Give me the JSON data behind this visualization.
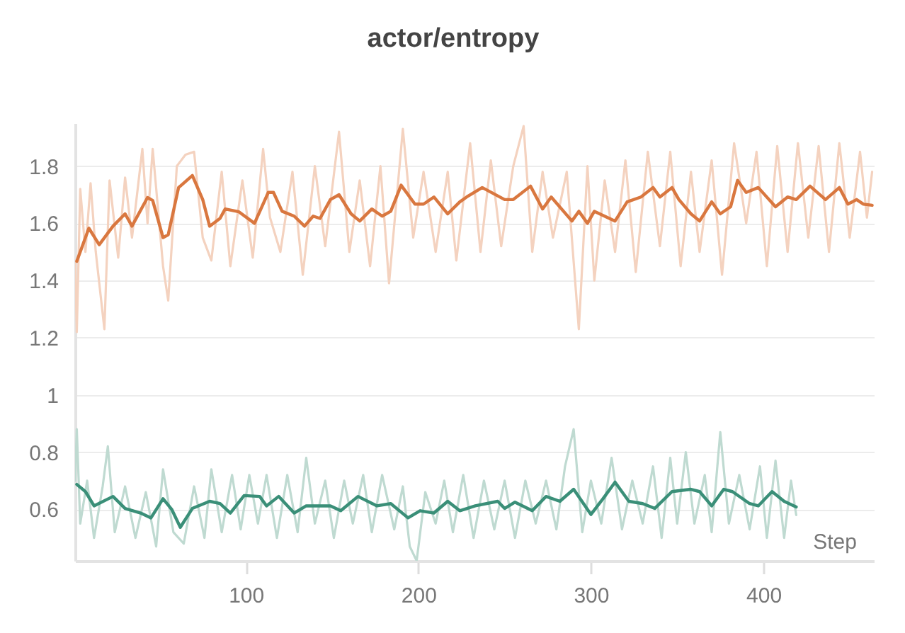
{
  "chart_data": {
    "type": "line",
    "title": "actor/entropy",
    "xlabel": "Step",
    "xlim": [
      1,
      464
    ],
    "xticks": [
      100,
      200,
      300,
      400
    ],
    "ylim": [
      0.42,
      1.95
    ],
    "yticks": [
      0.6,
      0.8,
      {
        "value": 1,
        "label": "1"
      },
      1.2,
      1.4,
      1.6,
      1.8
    ],
    "grid": "y",
    "series": [
      {
        "color": "#f4d2bf",
        "x": [
          1,
          2,
          4,
          7,
          10,
          13,
          18,
          21,
          26,
          30,
          34,
          40,
          43,
          46,
          52,
          55,
          60,
          65,
          70,
          75,
          80,
          86,
          91,
          98,
          104,
          110,
          114,
          120,
          127,
          133,
          140,
          146,
          154,
          160,
          166,
          172,
          178,
          183,
          191,
          197,
          203,
          210,
          217,
          222,
          230,
          236,
          242,
          248,
          255,
          261,
          266,
          272,
          278,
          286,
          293,
          298,
          302,
          308,
          314,
          320,
          326,
          333,
          340,
          346,
          352,
          358,
          363,
          370,
          376,
          383,
          390,
          396,
          402,
          408,
          414,
          420,
          426,
          432,
          438,
          444,
          450,
          456,
          460,
          463
        ],
        "values": [
          1.47,
          1.22,
          1.72,
          1.5,
          1.74,
          1.5,
          1.23,
          1.75,
          1.48,
          1.76,
          1.55,
          1.86,
          1.6,
          1.86,
          1.45,
          1.33,
          1.8,
          1.84,
          1.85,
          1.55,
          1.47,
          1.78,
          1.45,
          1.75,
          1.48,
          1.86,
          1.62,
          1.5,
          1.78,
          1.42,
          1.8,
          1.52,
          1.92,
          1.5,
          1.75,
          1.45,
          1.8,
          1.39,
          1.93,
          1.55,
          1.78,
          1.5,
          1.78,
          1.47,
          1.88,
          1.5,
          1.82,
          1.52,
          1.8,
          1.94,
          1.5,
          1.78,
          1.55,
          1.78,
          1.23,
          1.8,
          1.4,
          1.75,
          1.5,
          1.82,
          1.43,
          1.85,
          1.52,
          1.85,
          1.45,
          1.78,
          1.5,
          1.82,
          1.42,
          1.88,
          1.6,
          1.85,
          1.45,
          1.87,
          1.5,
          1.88,
          1.55,
          1.87,
          1.5,
          1.88,
          1.55,
          1.85,
          1.62,
          1.78
        ]
      },
      {
        "color": "#bfdad1",
        "x": [
          1,
          2,
          4,
          8,
          12,
          17,
          20,
          24,
          30,
          36,
          42,
          48,
          52,
          58,
          64,
          70,
          76,
          80,
          86,
          92,
          97,
          102,
          107,
          112,
          118,
          124,
          130,
          135,
          140,
          146,
          151,
          157,
          162,
          168,
          173,
          179,
          186,
          191,
          195,
          199,
          204,
          210,
          215,
          220,
          226,
          232,
          238,
          244,
          250,
          256,
          262,
          268,
          274,
          280,
          285,
          290,
          295,
          300,
          306,
          312,
          318,
          324,
          330,
          336,
          341,
          346,
          350,
          355,
          360,
          366,
          370,
          375,
          380,
          386,
          392,
          398,
          402,
          407,
          412,
          416,
          419
        ],
        "values": [
          0.7,
          0.88,
          0.55,
          0.7,
          0.5,
          0.68,
          0.82,
          0.52,
          0.68,
          0.5,
          0.66,
          0.47,
          0.74,
          0.52,
          0.48,
          0.68,
          0.5,
          0.74,
          0.52,
          0.72,
          0.53,
          0.72,
          0.55,
          0.72,
          0.5,
          0.72,
          0.52,
          0.78,
          0.55,
          0.7,
          0.5,
          0.7,
          0.55,
          0.72,
          0.52,
          0.72,
          0.53,
          0.68,
          0.47,
          0.42,
          0.66,
          0.55,
          0.7,
          0.52,
          0.72,
          0.5,
          0.7,
          0.53,
          0.7,
          0.5,
          0.7,
          0.55,
          0.7,
          0.53,
          0.75,
          0.88,
          0.52,
          0.7,
          0.55,
          0.78,
          0.53,
          0.7,
          0.55,
          0.75,
          0.5,
          0.78,
          0.55,
          0.8,
          0.55,
          0.72,
          0.52,
          0.87,
          0.55,
          0.72,
          0.53,
          0.75,
          0.5,
          0.77,
          0.5,
          0.7,
          0.58
        ]
      },
      {
        "color": "#d9773f",
        "x": [
          2,
          5,
          9,
          15,
          23,
          30,
          34,
          43,
          46,
          52,
          55,
          61,
          69,
          75,
          79,
          85,
          88,
          96,
          105,
          113,
          116,
          121,
          128,
          134,
          139,
          143,
          149,
          154,
          161,
          166,
          173,
          179,
          184,
          190,
          198,
          203,
          209,
          217,
          224,
          228,
          237,
          250,
          255,
          265,
          272,
          277,
          289,
          293,
          298,
          302,
          314,
          321,
          329,
          336,
          340,
          347,
          351,
          358,
          363,
          370,
          375,
          381,
          385,
          390,
          397,
          407,
          414,
          419,
          427,
          436,
          444,
          449,
          454,
          458,
          463
        ],
        "values": [
          1.467,
          1.517,
          1.583,
          1.525,
          1.59,
          1.633,
          1.59,
          1.69,
          1.68,
          1.55,
          1.56,
          1.725,
          1.767,
          1.683,
          1.59,
          1.617,
          1.65,
          1.64,
          1.6,
          1.708,
          1.708,
          1.642,
          1.625,
          1.59,
          1.625,
          1.617,
          1.683,
          1.7,
          1.633,
          1.608,
          1.65,
          1.625,
          1.642,
          1.733,
          1.667,
          1.667,
          1.692,
          1.633,
          1.675,
          1.692,
          1.725,
          1.683,
          1.683,
          1.73,
          1.65,
          1.692,
          1.608,
          1.642,
          1.6,
          1.642,
          1.608,
          1.675,
          1.692,
          1.725,
          1.692,
          1.725,
          1.683,
          1.633,
          1.608,
          1.675,
          1.633,
          1.658,
          1.75,
          1.708,
          1.725,
          1.658,
          1.692,
          1.683,
          1.73,
          1.683,
          1.725,
          1.667,
          1.683,
          1.667,
          1.663
        ]
      },
      {
        "color": "#3a8f78",
        "x": [
          2,
          7,
          12,
          23,
          30,
          39,
          45,
          52,
          57,
          62,
          69,
          79,
          85,
          91,
          99,
          108,
          112,
          119,
          128,
          135,
          149,
          155,
          165,
          176,
          184,
          194,
          201,
          209,
          217,
          224,
          233,
          246,
          250,
          256,
          266,
          274,
          282,
          290,
          300,
          307,
          314,
          322,
          330,
          337,
          347,
          358,
          363,
          370,
          377,
          382,
          392,
          397,
          405,
          412,
          419
        ],
        "values": [
          0.687,
          0.662,
          0.612,
          0.645,
          0.603,
          0.587,
          0.57,
          0.637,
          0.6,
          0.537,
          0.603,
          0.628,
          0.62,
          0.587,
          0.648,
          0.645,
          0.612,
          0.645,
          0.587,
          0.612,
          0.612,
          0.595,
          0.645,
          0.612,
          0.62,
          0.57,
          0.595,
          0.587,
          0.628,
          0.595,
          0.612,
          0.628,
          0.603,
          0.625,
          0.595,
          0.645,
          0.628,
          0.67,
          0.582,
          0.637,
          0.695,
          0.628,
          0.62,
          0.603,
          0.662,
          0.67,
          0.662,
          0.612,
          0.67,
          0.662,
          0.62,
          0.612,
          0.662,
          0.628,
          0.608
        ]
      }
    ]
  }
}
